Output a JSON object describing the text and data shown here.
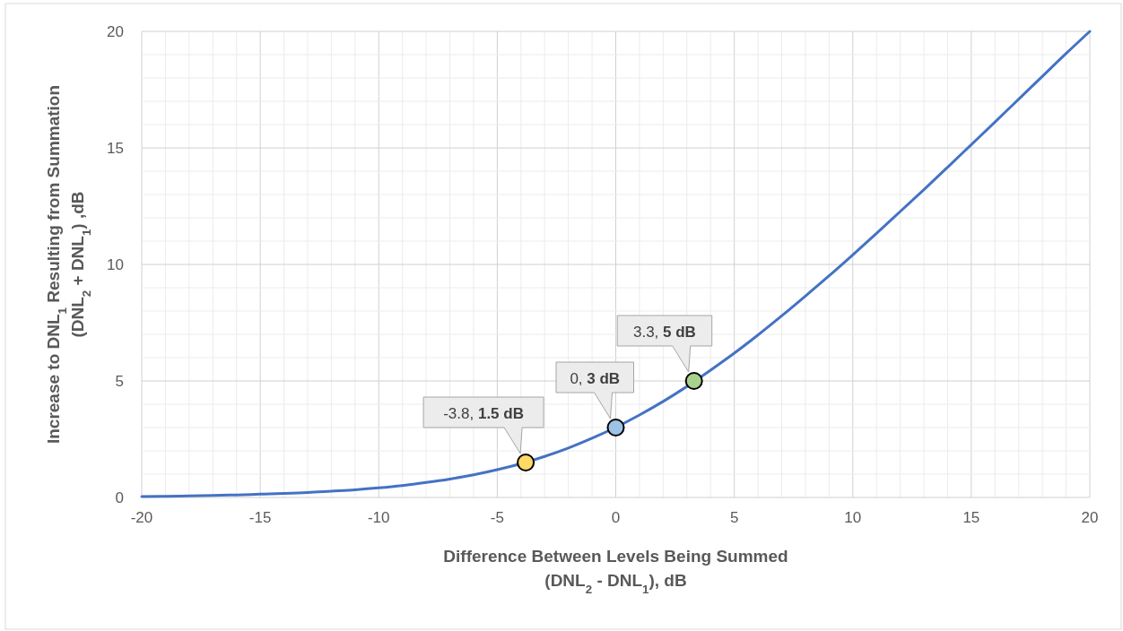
{
  "chart_data": {
    "type": "line",
    "xlabel": "Difference Between Levels Being Summed\n(DNL$_{2}$ - DNL$_{1}$), dB",
    "ylabel": "Increase to DNL$_{1}$ Resulting from Summation\n(DNL$_{2}$ + DNL$_{1}$) ,dB",
    "xlim": [
      -20,
      20
    ],
    "ylim": [
      0,
      20
    ],
    "xticks": [
      -20,
      {
        "value": -19,
        "label": null
      },
      {
        "value": -18,
        "label": null
      },
      {
        "value": -17,
        "label": null
      },
      {
        "value": -16,
        "label": null
      },
      -15,
      {
        "value": -14,
        "label": null
      },
      {
        "value": -13,
        "label": null
      },
      {
        "value": -12,
        "label": null
      },
      {
        "value": -11,
        "label": null
      },
      -10,
      {
        "value": -9,
        "label": null
      },
      {
        "value": -8,
        "label": null
      },
      {
        "value": -7,
        "label": null
      },
      {
        "value": -6,
        "label": null
      },
      -5,
      {
        "value": -4,
        "label": null
      },
      {
        "value": -3,
        "label": null
      },
      {
        "value": -2,
        "label": null
      },
      {
        "value": -1,
        "label": null
      },
      0,
      {
        "value": 1,
        "label": null
      },
      {
        "value": 2,
        "label": null
      },
      {
        "value": 3,
        "label": null
      },
      {
        "value": 4,
        "label": null
      },
      5,
      {
        "value": 6,
        "label": null
      },
      {
        "value": 7,
        "label": null
      },
      {
        "value": 8,
        "label": null
      },
      {
        "value": 9,
        "label": null
      },
      10,
      {
        "value": 11,
        "label": null
      },
      {
        "value": 12,
        "label": null
      },
      {
        "value": 13,
        "label": null
      },
      {
        "value": 14,
        "label": null
      },
      15,
      {
        "value": 16,
        "label": null
      },
      {
        "value": 17,
        "label": null
      },
      {
        "value": 18,
        "label": null
      },
      {
        "value": 19,
        "label": null
      },
      20
    ],
    "yticks": [
      0,
      {
        "value": 1,
        "label": null
      },
      {
        "value": 2,
        "label": null
      },
      {
        "value": 3,
        "label": null
      },
      {
        "value": 4,
        "label": null
      },
      5,
      {
        "value": 6,
        "label": null
      },
      {
        "value": 7,
        "label": null
      },
      {
        "value": 8,
        "label": null
      },
      {
        "value": 9,
        "label": null
      },
      10,
      {
        "value": 11,
        "label": null
      },
      {
        "value": 12,
        "label": null
      },
      {
        "value": 13,
        "label": null
      },
      {
        "value": 14,
        "label": null
      },
      15,
      {
        "value": 16,
        "label": null
      },
      {
        "value": 17,
        "label": null
      },
      {
        "value": 18,
        "label": null
      },
      {
        "value": 19,
        "label": null
      },
      20
    ],
    "grid": true,
    "series": [
      {
        "color": "#4472c4",
        "x": [
          -20,
          -19,
          -18,
          -17,
          -16,
          -15,
          -14,
          -13,
          -12,
          -11,
          -10,
          -9,
          -8,
          -7,
          -6,
          -5,
          -3,
          -2,
          -1,
          0,
          1,
          2,
          3,
          4,
          5,
          6,
          7,
          8,
          9,
          10,
          11,
          12,
          13,
          14,
          15,
          16,
          17,
          18,
          19,
          20
        ],
        "values": [
          0.04,
          0.05,
          0.07,
          0.09,
          0.11,
          0.14,
          0.17,
          0.21,
          0.27,
          0.33,
          0.41,
          0.51,
          0.64,
          0.79,
          0.97,
          1.19,
          1.76,
          2.12,
          2.54,
          3.01,
          3.54,
          4.12,
          4.76,
          5.46,
          6.19,
          6.97,
          7.79,
          8.64,
          9.51,
          10.41,
          11.33,
          12.27,
          13.21,
          14.17,
          15.14,
          16.11,
          17.09,
          18.07,
          19.05,
          20
        ]
      },
      {
        "type": "scatter",
        "marker": "circle",
        "x": [
          -3.8,
          0,
          3.3
        ],
        "values": [
          1.5,
          3,
          5
        ],
        "colors": [
          "#ffd966",
          "#9dc3e6",
          "#a9d18e"
        ]
      }
    ],
    "annotations": [
      {
        "text": "-3.8, 1.5 dB",
        "x": -3.8,
        "y": 1.5
      },
      {
        "text": "0, 3 dB",
        "x": 0,
        "y": 3
      },
      {
        "text": "3.3, 5 dB",
        "x": 3.3,
        "y": 5
      }
    ]
  }
}
